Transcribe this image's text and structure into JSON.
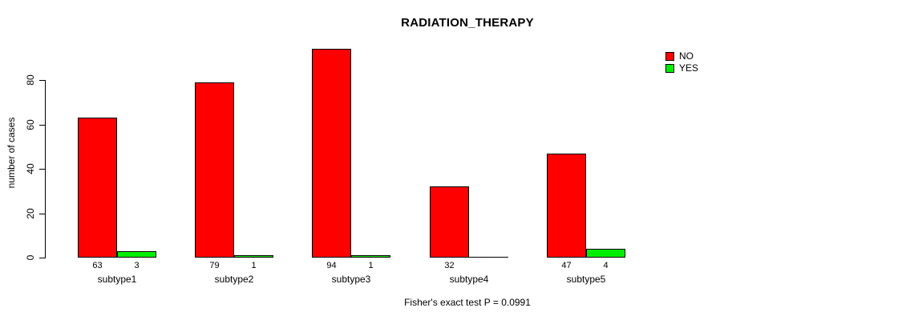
{
  "title": "RADIATION_THERAPY",
  "ylabel": "number of cases",
  "footer": "Fisher's exact test P = 0.0991",
  "colors": {
    "no": "#ff0000",
    "yes": "#00ee00",
    "axis": "#000000",
    "background": "#ffffff"
  },
  "legend": {
    "position": "top-right",
    "items": [
      {
        "label": "NO",
        "color": "#ff0000"
      },
      {
        "label": "YES",
        "color": "#00ee00"
      }
    ]
  },
  "chart_data": {
    "type": "bar",
    "title": "RADIATION_THERAPY",
    "categories": [
      "subtype1",
      "subtype2",
      "subtype3",
      "subtype4",
      "subtype5"
    ],
    "series": [
      {
        "name": "NO",
        "color": "#ff0000",
        "values": [
          63,
          79,
          94,
          32,
          47
        ]
      },
      {
        "name": "YES",
        "color": "#00ee00",
        "values": [
          3,
          1,
          1,
          0,
          4
        ]
      }
    ],
    "bar_labels": [
      [
        "63",
        "3"
      ],
      [
        "79",
        "1"
      ],
      [
        "94",
        "1"
      ],
      [
        "32",
        ""
      ],
      [
        "47",
        "4"
      ]
    ],
    "xlabel": "",
    "ylabel": "number of cases",
    "yticks": [
      0,
      20,
      40,
      60,
      80
    ],
    "ylim": [
      0,
      94
    ],
    "grid": false,
    "legend_position": "top-right",
    "annotation": "Fisher's exact test P = 0.0991"
  }
}
